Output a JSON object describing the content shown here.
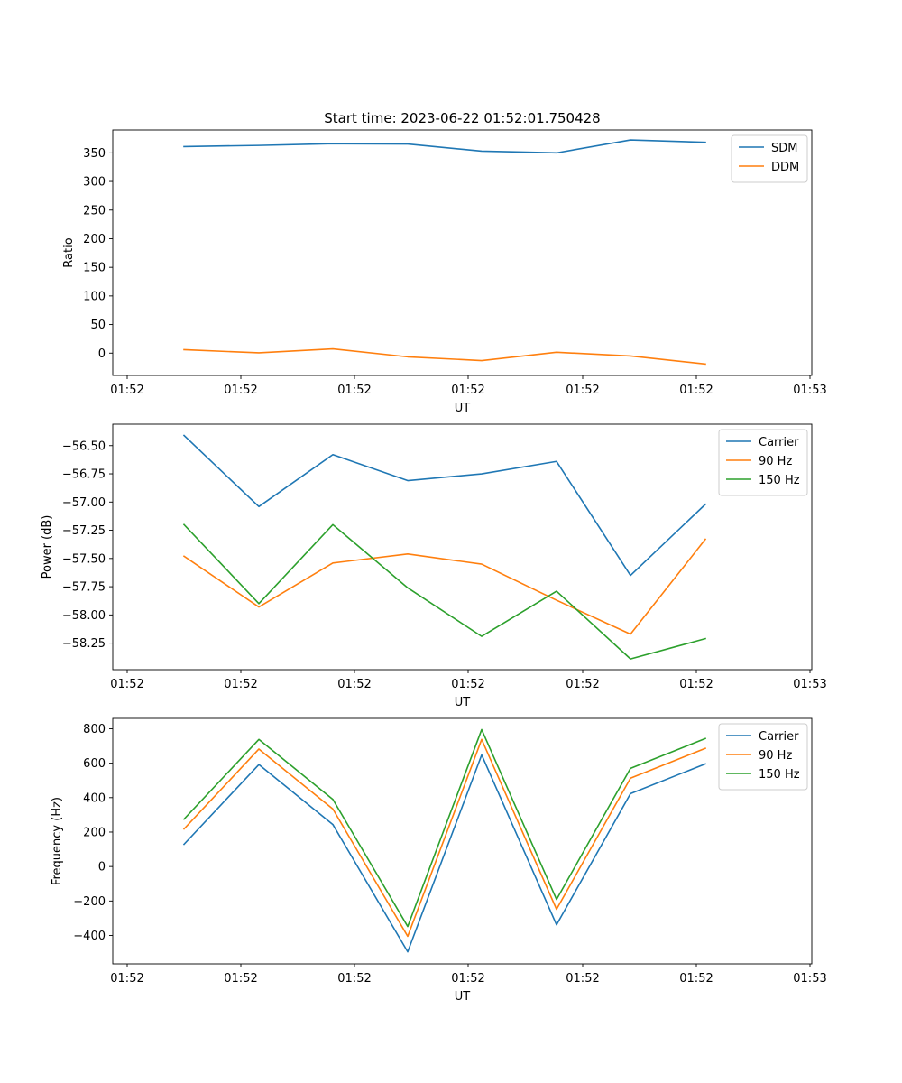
{
  "figure": {
    "title": "Start time: 2023-06-22 01:52:01.750428"
  },
  "chart_data": [
    {
      "type": "line",
      "xlabel": "UT",
      "ylabel": "Ratio",
      "x_ticks": [
        "01:52",
        "01:52",
        "01:52",
        "01:52",
        "01:52",
        "01:52",
        "01:53"
      ],
      "y_ticks": [
        0,
        50,
        100,
        150,
        200,
        250,
        300,
        350
      ],
      "ylim": [
        -39,
        390
      ],
      "x": [
        1,
        2,
        3,
        4,
        5,
        6,
        7,
        8
      ],
      "grid": false,
      "legend_position": "top-right",
      "series": [
        {
          "name": "SDM",
          "color": "#1f77b4",
          "values": [
            361,
            363,
            366,
            365.5,
            353,
            350,
            372.5,
            368.5
          ]
        },
        {
          "name": "DDM",
          "color": "#ff7f0e",
          "values": [
            6,
            0.5,
            7.5,
            -6.5,
            -13,
            1.5,
            -5,
            -19
          ]
        }
      ]
    },
    {
      "type": "line",
      "xlabel": "UT",
      "ylabel": "Power (dB)",
      "x_ticks": [
        "01:52",
        "01:52",
        "01:52",
        "01:52",
        "01:52",
        "01:52",
        "01:53"
      ],
      "y_ticks": [
        -56.5,
        -56.75,
        -57.0,
        -57.25,
        -57.5,
        -57.75,
        -58.0,
        -58.25
      ],
      "y_tick_labels": [
        "−56.50",
        "−56.75",
        "−57.00",
        "−57.25",
        "−57.50",
        "−57.75",
        "−58.00",
        "−58.25"
      ],
      "ylim": [
        -58.485,
        -56.31
      ],
      "x": [
        1,
        2,
        3,
        4,
        5,
        6,
        7,
        8
      ],
      "grid": false,
      "legend_position": "top-right",
      "series": [
        {
          "name": "Carrier",
          "color": "#1f77b4",
          "values": [
            -56.41,
            -57.04,
            -56.58,
            -56.81,
            -56.75,
            -56.64,
            -57.65,
            -57.02
          ]
        },
        {
          "name": "90 Hz",
          "color": "#ff7f0e",
          "values": [
            -57.48,
            -57.93,
            -57.54,
            -57.46,
            -57.55,
            -57.87,
            -58.17,
            -57.33
          ]
        },
        {
          "name": "150 Hz",
          "color": "#2ca02c",
          "values": [
            -57.2,
            -57.9,
            -57.2,
            -57.76,
            -58.19,
            -57.79,
            -58.39,
            -58.21
          ]
        }
      ]
    },
    {
      "type": "line",
      "xlabel": "UT",
      "ylabel": "Frequency (Hz)",
      "x_ticks": [
        "01:52",
        "01:52",
        "01:52",
        "01:52",
        "01:52",
        "01:52",
        "01:53"
      ],
      "y_ticks": [
        -400,
        -200,
        0,
        200,
        400,
        600,
        800
      ],
      "y_tick_labels": [
        "−400",
        "−200",
        "0",
        "200",
        "400",
        "600",
        "800"
      ],
      "ylim": [
        -565,
        860
      ],
      "x": [
        1,
        2,
        3,
        4,
        5,
        6,
        7,
        8
      ],
      "grid": false,
      "legend_position": "top-right",
      "series": [
        {
          "name": "Carrier",
          "color": "#1f77b4",
          "values": [
            129,
            592,
            244,
            -495,
            648,
            -338,
            423,
            596
          ]
        },
        {
          "name": "90 Hz",
          "color": "#ff7f0e",
          "values": [
            218,
            682,
            334,
            -405,
            738,
            -248,
            513,
            686
          ]
        },
        {
          "name": "150 Hz",
          "color": "#2ca02c",
          "values": [
            275,
            738,
            390,
            -348,
            795,
            -191,
            570,
            743
          ]
        }
      ]
    }
  ]
}
